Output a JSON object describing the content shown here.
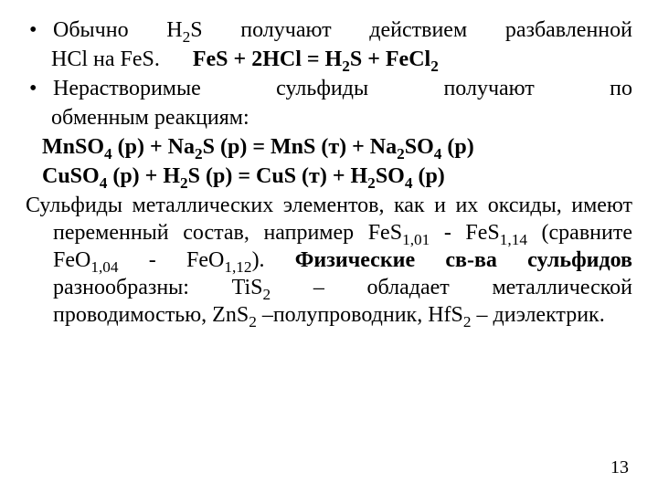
{
  "colors": {
    "bg": "#ffffff",
    "text": "#000000"
  },
  "font": {
    "family": "Times New Roman",
    "size_pt": 24,
    "bold_weight": 700
  },
  "bullets": [
    {
      "line1_a": "Обычно H",
      "line1_b": "S получают действием разбавленной",
      "line2_a": "HCl на FeS.",
      "eq_pre": "FeS + 2HCl = H",
      "eq_mid": "S + FeCl"
    },
    {
      "line1_a": "Нерастворимые",
      "line1_b": "сульфиды",
      "line1_c": "получают",
      "line1_d": "по",
      "line2": "обменным реакциям:"
    }
  ],
  "equations": [
    {
      "l1": "MnSO",
      "l2": " (р)  +  Na",
      "l3": "S (р)  =  MnS (т)  +  Na",
      "l4": "SO",
      "l5": " (р)"
    },
    {
      "l1": "CuSO",
      "l2": " (р)   +   H",
      "l3": "S (р)   =   CuS (т)   +   H",
      "l4": "SO",
      "l5": " (р)"
    }
  ],
  "para": {
    "p1": "Сульфиды металлических элементов, как и их оксиды,",
    "p2a": "имеют переменный состав, например FeS",
    "p2b": " - FeS",
    "p3a": "(сравните   FeO",
    "p3b": "  -  FeO",
    "p3c": ").   ",
    "p3_bold": "Физические св-ва",
    "p4a_bold": "сульфидов",
    "p4b": "    разнообразны:    TiS",
    "p4c": "    –    обладает",
    "p5a": "металлической проводимостью, ZnS",
    "p5b": " –полупроводник,",
    "p6a": "HfS",
    "p6b": " – диэлектрик."
  },
  "subs": {
    "s2": "2",
    "s4": "4",
    "s101": "1,01",
    "s114": "1,14",
    "s104": "1,04",
    "s112": "1,12"
  },
  "pagenum": "13"
}
